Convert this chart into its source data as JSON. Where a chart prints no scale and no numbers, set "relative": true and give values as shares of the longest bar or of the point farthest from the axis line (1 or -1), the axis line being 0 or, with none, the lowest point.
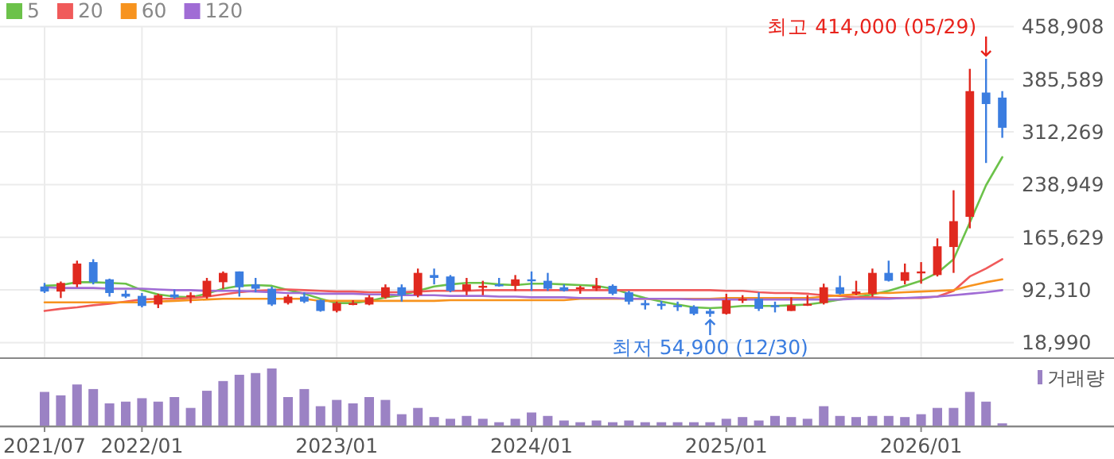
{
  "chart_data": [
    {
      "type": "candlestick",
      "categories": [
        "2021/07",
        null,
        null,
        null,
        null,
        null,
        "2022/01",
        null,
        null,
        null,
        null,
        null,
        null,
        null,
        null,
        null,
        null,
        null,
        "2023/01",
        null,
        null,
        null,
        null,
        null,
        null,
        null,
        null,
        null,
        null,
        null,
        "2024/01",
        null,
        null,
        null,
        null,
        null,
        null,
        null,
        null,
        null,
        null,
        null,
        "2025/01",
        null,
        null,
        null,
        null,
        null,
        null,
        null,
        null,
        null,
        null,
        null,
        "2026/01",
        null,
        null,
        null,
        null,
        null
      ],
      "ohlc": [
        [
          97000,
          102000,
          88000,
          90000
        ],
        [
          90000,
          104000,
          81000,
          102000
        ],
        [
          100000,
          133000,
          96000,
          129000
        ],
        [
          131000,
          135000,
          100000,
          103000
        ],
        [
          107000,
          108000,
          83000,
          88000
        ],
        [
          87000,
          92000,
          81000,
          83000
        ],
        [
          84000,
          88000,
          68000,
          70000
        ],
        [
          72000,
          87000,
          67000,
          85000
        ],
        [
          86000,
          93000,
          80000,
          82000
        ],
        [
          83000,
          89000,
          74000,
          85000
        ],
        [
          83000,
          109000,
          80000,
          105000
        ],
        [
          103000,
          118000,
          94000,
          116000
        ],
        [
          118000,
          118000,
          83000,
          96000
        ],
        [
          100000,
          109000,
          89000,
          94000
        ],
        [
          94000,
          97000,
          70000,
          72000
        ],
        [
          74000,
          86000,
          72000,
          83000
        ],
        [
          83000,
          89000,
          74000,
          76000
        ],
        [
          78000,
          79000,
          62000,
          63000
        ],
        [
          63000,
          76000,
          61000,
          74000
        ],
        [
          72000,
          78000,
          71000,
          74000
        ],
        [
          72000,
          85000,
          71000,
          82000
        ],
        [
          82000,
          100000,
          80000,
          96000
        ],
        [
          96000,
          100000,
          76000,
          85000
        ],
        [
          85000,
          122000,
          82000,
          116000
        ],
        [
          113000,
          122000,
          100000,
          109000
        ],
        [
          111000,
          113000,
          89000,
          91000
        ],
        [
          91000,
          109000,
          85000,
          100000
        ],
        [
          96000,
          105000,
          85000,
          98000
        ],
        [
          100000,
          109000,
          97000,
          98000
        ],
        [
          98000,
          113000,
          91000,
          107000
        ],
        [
          107000,
          118000,
          91000,
          105000
        ],
        [
          105000,
          116000,
          91000,
          94000
        ],
        [
          96000,
          100000,
          90000,
          91000
        ],
        [
          94000,
          98000,
          87000,
          96000
        ],
        [
          94000,
          109000,
          91000,
          98000
        ],
        [
          98000,
          100000,
          85000,
          87000
        ],
        [
          89000,
          91000,
          72000,
          76000
        ],
        [
          74000,
          78000,
          65000,
          71000
        ],
        [
          73000,
          77000,
          65000,
          70000
        ],
        [
          71000,
          76000,
          63000,
          70000
        ],
        [
          69000,
          71000,
          57000,
          59000
        ],
        [
          63000,
          66000,
          54900,
          59000
        ],
        [
          59000,
          87000,
          58000,
          78000
        ],
        [
          78000,
          85000,
          74000,
          80000
        ],
        [
          80000,
          89000,
          63000,
          66000
        ],
        [
          71000,
          76000,
          61000,
          70000
        ],
        [
          63000,
          82000,
          63000,
          71000
        ],
        [
          71000,
          85000,
          70000,
          73000
        ],
        [
          74000,
          101000,
          72000,
          96000
        ],
        [
          96000,
          112000,
          86000,
          87000
        ],
        [
          87000,
          105000,
          85000,
          90000
        ],
        [
          87000,
          122000,
          83000,
          116000
        ],
        [
          116000,
          133000,
          104000,
          105000
        ],
        [
          105000,
          129000,
          100000,
          117000
        ],
        [
          116000,
          131000,
          101000,
          118000
        ],
        [
          113000,
          164000,
          111000,
          153000
        ],
        [
          152000,
          231000,
          116000,
          188000
        ],
        [
          194000,
          400000,
          178000,
          369000
        ],
        [
          367000,
          414000,
          269000,
          351000
        ],
        [
          360000,
          369000,
          304000,
          318000
        ]
      ],
      "series": [
        {
          "name": "5",
          "type": "line",
          "color": "#6cc24a",
          "values": [
            98000,
            99000,
            103000,
            103000,
            102000,
            101000,
            92000,
            86000,
            83000,
            82000,
            87000,
            94000,
            98000,
            99000,
            98000,
            92000,
            87000,
            80000,
            74000,
            74000,
            77000,
            82000,
            85000,
            91000,
            97000,
            100000,
            102000,
            102000,
            100000,
            99000,
            101000,
            101000,
            100000,
            99000,
            98000,
            94000,
            87000,
            81000,
            76000,
            72000,
            68000,
            67000,
            68000,
            70000,
            70000,
            70000,
            71000,
            72000,
            75000,
            79000,
            82000,
            86000,
            91000,
            98000,
            105000,
            116000,
            135000,
            186000,
            238000,
            277000
          ]
        },
        {
          "name": "20",
          "type": "line",
          "color": "#f05a5a",
          "values": [
            63000,
            66000,
            68000,
            71000,
            73000,
            76000,
            79000,
            80000,
            80000,
            81000,
            83000,
            86000,
            89000,
            91000,
            92000,
            93000,
            92000,
            91000,
            90000,
            90000,
            89000,
            89000,
            89000,
            90000,
            91000,
            91000,
            91000,
            92000,
            92000,
            92000,
            92000,
            92000,
            92000,
            92000,
            92000,
            92000,
            92000,
            92000,
            92000,
            92000,
            92000,
            92000,
            91000,
            91000,
            89000,
            88000,
            88000,
            87000,
            85000,
            84000,
            82000,
            82000,
            81000,
            81000,
            81000,
            83000,
            91000,
            111000,
            122000,
            135000
          ]
        },
        {
          "name": "60",
          "type": "line",
          "color": "#f7931e",
          "values": [
            75000,
            75000,
            75000,
            75000,
            75000,
            75000,
            75000,
            76000,
            77000,
            78000,
            79000,
            80000,
            80000,
            80000,
            80000,
            80000,
            80000,
            77000,
            77000,
            77000,
            77000,
            77000,
            77000,
            77000,
            77000,
            78000,
            78000,
            78000,
            78000,
            78000,
            78000,
            78000,
            78000,
            80000,
            80000,
            80000,
            80000,
            80000,
            80000,
            80000,
            80000,
            80000,
            81000,
            81000,
            81000,
            81000,
            81000,
            81000,
            83000,
            85000,
            86000,
            88000,
            88000,
            89000,
            90000,
            91000,
            92000,
            98000,
            103000,
            107000
          ]
        },
        {
          "name": "120",
          "type": "line",
          "color": "#a06cd5",
          "values": [
            96000,
            95000,
            95000,
            95000,
            94000,
            94000,
            94000,
            93000,
            92000,
            92000,
            91000,
            91000,
            91000,
            90000,
            89000,
            88000,
            88000,
            87000,
            87000,
            87000,
            86000,
            86000,
            85000,
            85000,
            85000,
            84000,
            84000,
            84000,
            83000,
            83000,
            82000,
            82000,
            82000,
            81000,
            81000,
            81000,
            80000,
            80000,
            80000,
            80000,
            79000,
            79000,
            79000,
            79000,
            79000,
            79000,
            79000,
            79000,
            79000,
            79000,
            80000,
            80000,
            80000,
            81000,
            82000,
            83000,
            85000,
            87000,
            89000,
            92000
          ]
        }
      ],
      "ylim": [
        18990,
        458908
      ],
      "yticks": [
        {
          "value": 18990,
          "label": "18,990"
        },
        {
          "value": 92310,
          "label": "92,310"
        },
        {
          "value": 165629,
          "label": "165,629"
        },
        {
          "value": 238949,
          "label": "238,949"
        },
        {
          "value": 312269,
          "label": "312,269"
        },
        {
          "value": 385589,
          "label": "385,589"
        },
        {
          "value": 458908,
          "label": "458,908"
        }
      ],
      "annotations": [
        "최고 414,000 (05/29)",
        "최저 54,900 (12/30)"
      ],
      "grid": true,
      "legend": "top left",
      "tick_labels": "y"
    },
    {
      "type": "bar",
      "relative": true,
      "categories": [
        "2021/07",
        null,
        null,
        null,
        null,
        null,
        "2022/01",
        null,
        null,
        null,
        null,
        null,
        null,
        null,
        null,
        null,
        null,
        null,
        "2023/01",
        null,
        null,
        null,
        null,
        null,
        null,
        null,
        null,
        null,
        null,
        null,
        "2024/01",
        null,
        null,
        null,
        null,
        null,
        null,
        null,
        null,
        null,
        null,
        null,
        "2025/01",
        null,
        null,
        null,
        null,
        null,
        null,
        null,
        null,
        null,
        null,
        null,
        "2026/01",
        null,
        null,
        null,
        null,
        null
      ],
      "series": [
        {
          "name": "거래량",
          "color": "#9b82c4",
          "values": [
            0.59,
            0.53,
            0.72,
            0.64,
            0.39,
            0.42,
            0.48,
            0.42,
            0.5,
            0.31,
            0.61,
            0.78,
            0.89,
            0.92,
            1,
            0.5,
            0.64,
            0.34,
            0.45,
            0.39,
            0.5,
            0.45,
            0.2,
            0.31,
            0.15,
            0.12,
            0.17,
            0.12,
            0.06,
            0.12,
            0.23,
            0.17,
            0.09,
            0.06,
            0.09,
            0.06,
            0.09,
            0.06,
            0.06,
            0.06,
            0.06,
            0.06,
            0.12,
            0.15,
            0.09,
            0.17,
            0.15,
            0.12,
            0.34,
            0.17,
            0.15,
            0.17,
            0.17,
            0.15,
            0.2,
            0.31,
            0.31,
            0.59,
            0.42,
            0.04
          ]
        }
      ],
      "legend": "top right",
      "tick_labels": "x"
    }
  ]
}
